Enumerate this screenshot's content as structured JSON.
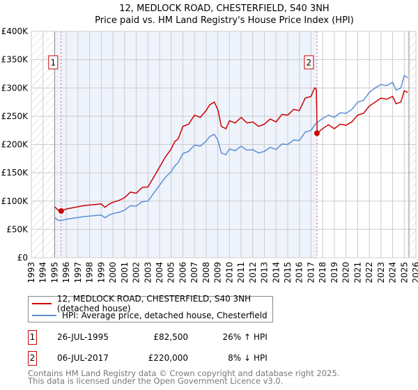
{
  "chart_data": {
    "type": "line",
    "title": "12, MEDLOCK ROAD, CHESTERFIELD, S40 3NH",
    "subtitle": "Price paid vs. HM Land Registry's House Price Index (HPI)",
    "xlim": [
      1993,
      2026
    ],
    "ylim": [
      0,
      400000
    ],
    "x_ticks": [
      "1993",
      "1994",
      "1995",
      "1996",
      "1997",
      "1998",
      "1999",
      "2000",
      "2001",
      "2002",
      "2003",
      "2004",
      "2005",
      "2006",
      "2007",
      "2008",
      "2009",
      "2010",
      "2011",
      "2012",
      "2013",
      "2014",
      "2015",
      "2016",
      "2017",
      "2018",
      "2019",
      "2020",
      "2021",
      "2022",
      "2023",
      "2024",
      "2025",
      "2026"
    ],
    "y_ticks": [
      {
        "v": 0,
        "label": "£0"
      },
      {
        "v": 50000,
        "label": "£50K"
      },
      {
        "v": 100000,
        "label": "£100K"
      },
      {
        "v": 150000,
        "label": "£150K"
      },
      {
        "v": 200000,
        "label": "£200K"
      },
      {
        "v": 250000,
        "label": "£250K"
      },
      {
        "v": 300000,
        "label": "£300K"
      },
      {
        "v": 350000,
        "label": "£350K"
      },
      {
        "v": 400000,
        "label": "£400K"
      }
    ],
    "grid": true,
    "series": [
      {
        "name": "12, MEDLOCK ROAD, CHESTERFIELD, S40 3NH (detached house)",
        "color": "#cc0000",
        "x": [
          1995.0,
          1995.3,
          1995.56,
          1996,
          1996.5,
          1997,
          1997.5,
          1998,
          1998.5,
          1999,
          1999.3,
          1999.7,
          2000,
          2000.5,
          2001,
          2001.5,
          2002,
          2002.5,
          2003,
          2003.5,
          2004,
          2004.5,
          2005,
          2005.3,
          2005.6,
          2006,
          2006.5,
          2007,
          2007.5,
          2008,
          2008.3,
          2008.7,
          2009,
          2009.3,
          2009.7,
          2010,
          2010.5,
          2011,
          2011.5,
          2012,
          2012.5,
          2013,
          2013.5,
          2014,
          2014.5,
          2015,
          2015.5,
          2016,
          2016.5,
          2017,
          2017.3,
          2017.45,
          2017.53,
          2018,
          2018.5,
          2019,
          2019.5,
          2020,
          2020.5,
          2021,
          2021.5,
          2022,
          2022.5,
          2023,
          2023.5,
          2024,
          2024.3,
          2024.7,
          2025,
          2025.3
        ],
        "y": [
          90000,
          84000,
          82500,
          86000,
          88000,
          90000,
          92000,
          93000,
          94000,
          95000,
          89000,
          95000,
          98000,
          101000,
          106000,
          116000,
          114000,
          124000,
          125000,
          142000,
          160000,
          178000,
          192000,
          205000,
          210000,
          232000,
          236000,
          252000,
          248000,
          260000,
          270000,
          275000,
          262000,
          232000,
          228000,
          242000,
          238000,
          248000,
          238000,
          240000,
          232000,
          236000,
          245000,
          240000,
          253000,
          252000,
          262000,
          260000,
          282000,
          285000,
          300000,
          298000,
          220000,
          228000,
          235000,
          228000,
          236000,
          234000,
          240000,
          252000,
          255000,
          268000,
          275000,
          282000,
          280000,
          285000,
          272000,
          275000,
          295000,
          292000
        ]
      },
      {
        "name": "HPI: Average price, detached house, Chesterfield",
        "color": "#5b8fd4",
        "x": [
          1995.0,
          1995.3,
          1995.56,
          1996,
          1996.5,
          1997,
          1997.5,
          1998,
          1998.5,
          1999,
          1999.3,
          1999.7,
          2000,
          2000.5,
          2001,
          2001.5,
          2002,
          2002.5,
          2003,
          2003.5,
          2004,
          2004.5,
          2005,
          2005.3,
          2005.6,
          2006,
          2006.5,
          2007,
          2007.5,
          2008,
          2008.3,
          2008.7,
          2009,
          2009.3,
          2009.7,
          2010,
          2010.5,
          2011,
          2011.5,
          2012,
          2012.5,
          2013,
          2013.5,
          2014,
          2014.5,
          2015,
          2015.5,
          2016,
          2016.5,
          2017,
          2017.3,
          2017.53,
          2018,
          2018.5,
          2019,
          2019.5,
          2020,
          2020.5,
          2021,
          2021.5,
          2022,
          2022.5,
          2023,
          2023.5,
          2024,
          2024.3,
          2024.7,
          2025,
          2025.3
        ],
        "y": [
          71000,
          66000,
          65500,
          68000,
          69500,
          71000,
          72500,
          73500,
          74500,
          75500,
          70500,
          75500,
          78000,
          80000,
          84000,
          92000,
          91000,
          99000,
          100000,
          114000,
          128000,
          142000,
          152000,
          162000,
          168000,
          184000,
          188000,
          199000,
          197000,
          206000,
          214000,
          218000,
          208000,
          185000,
          182000,
          192000,
          189000,
          197000,
          190000,
          191000,
          185000,
          188000,
          195000,
          191000,
          201000,
          200000,
          208000,
          207000,
          222000,
          225000,
          234000,
          239000,
          246000,
          252000,
          248000,
          256000,
          255000,
          262000,
          275000,
          278000,
          292000,
          300000,
          306000,
          304000,
          310000,
          296000,
          300000,
          322000,
          318000
        ]
      }
    ],
    "annotations": [
      {
        "label": "1",
        "x": 1995.56,
        "y": 82500
      },
      {
        "label": "2",
        "x": 2017.51,
        "y": 220000
      }
    ],
    "shaded_range": [
      1995.0,
      2017.51
    ],
    "hatched_ranges": [
      [
        1993,
        1995.0
      ],
      [
        2025.4,
        2026
      ]
    ]
  },
  "legend": {
    "items": [
      {
        "label": "12, MEDLOCK ROAD, CHESTERFIELD, S40 3NH (detached house)",
        "color": "#cc0000"
      },
      {
        "label": "HPI: Average price, detached house, Chesterfield",
        "color": "#5b8fd4"
      }
    ]
  },
  "transactions": [
    {
      "num": "1",
      "date": "26-JUL-1995",
      "price": "£82,500",
      "pct": "26%",
      "arrow": "↑",
      "hpi": "HPI"
    },
    {
      "num": "2",
      "date": "06-JUL-2017",
      "price": "£220,000",
      "pct": "8%",
      "arrow": "↓",
      "hpi": "HPI"
    }
  ],
  "footer": {
    "line1": "Contains HM Land Registry data © Crown copyright and database right 2025.",
    "line2": "This data is licensed under the Open Government Licence v3.0."
  }
}
